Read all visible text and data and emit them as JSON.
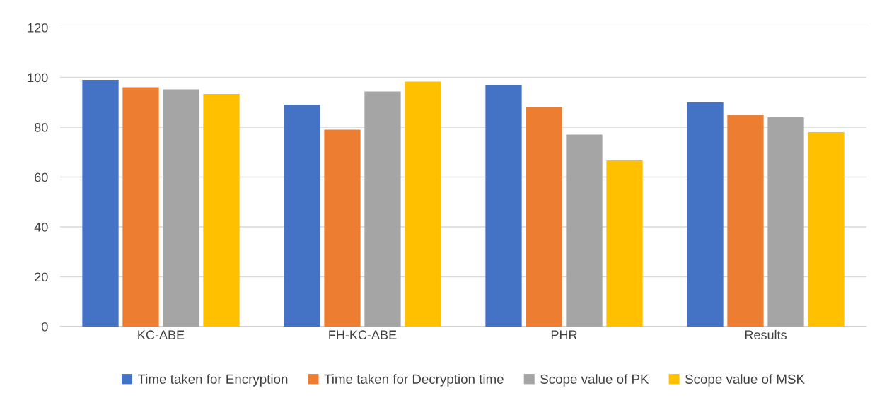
{
  "chart_data": {
    "type": "bar",
    "categories": [
      "KC-ABE",
      "FH-KC-ABE",
      "PHR",
      "Results"
    ],
    "series": [
      {
        "name": "Time taken for Encryption",
        "color": "#4472c4",
        "values": [
          99,
          89,
          97,
          90
        ]
      },
      {
        "name": "Time taken for Decryption time",
        "color": "#ed7d31",
        "values": [
          96,
          79,
          88,
          85
        ]
      },
      {
        "name": "Scope value of PK",
        "color": "#a5a5a5",
        "values": [
          95.2,
          94.3,
          77,
          84
        ]
      },
      {
        "name": "Scope value of MSK",
        "color": "#ffc000",
        "values": [
          93.3,
          98.3,
          66.7,
          78
        ]
      }
    ],
    "ylim": [
      0,
      120
    ],
    "yticks": [
      0,
      20,
      40,
      60,
      80,
      100,
      120
    ],
    "grid": "y",
    "legend": "bottom"
  }
}
